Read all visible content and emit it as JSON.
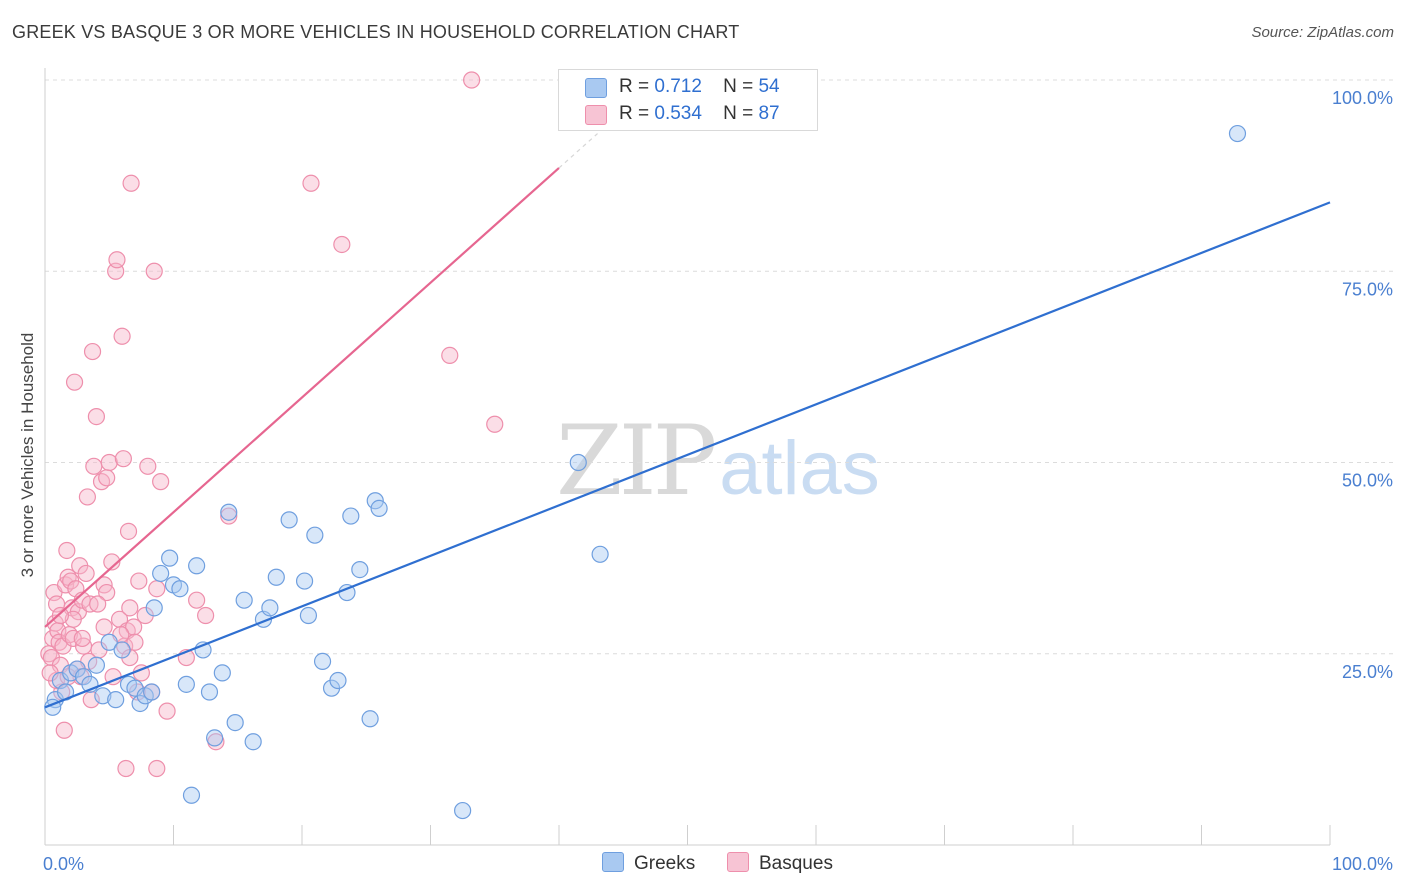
{
  "title": "GREEK VS BASQUE 3 OR MORE VEHICLES IN HOUSEHOLD CORRELATION CHART",
  "source": "Source: ZipAtlas.com",
  "watermark": {
    "zip": "ZIP",
    "atlas": "atlas"
  },
  "legend": {
    "greeks": {
      "r_label": "R =",
      "r_value": "0.712",
      "n_label": "N =",
      "n_value": "54"
    },
    "basques": {
      "r_label": "R =",
      "r_value": "0.534",
      "n_label": "N =",
      "n_value": "87"
    }
  },
  "bottom_legend": {
    "greeks": "Greeks",
    "basques": "Basques"
  },
  "colors": {
    "greeks_fill": "#a9c9f1",
    "greeks_stroke": "#6f9fdf",
    "greeks_line": "#2f6fd0",
    "basques_fill": "#f7b6ca",
    "basques_stroke": "#ee8fac",
    "basques_line": "#e66690",
    "axis_text": "#4a7fd0",
    "grid": "#dcdcdc"
  },
  "chart_data": {
    "type": "scatter",
    "title": "GREEK VS BASQUE 3 OR MORE VEHICLES IN HOUSEHOLD CORRELATION CHART",
    "xlabel": "",
    "ylabel": "3 or more Vehicles in Household",
    "xlim": [
      0,
      100
    ],
    "ylim": [
      0,
      100
    ],
    "x_tick_labels": [
      "0.0%",
      "100.0%"
    ],
    "y_ticks": [
      25,
      50,
      75,
      100
    ],
    "y_tick_labels": [
      "25.0%",
      "50.0%",
      "75.0%",
      "100.0%"
    ],
    "series": [
      {
        "name": "Greeks",
        "r": 0.712,
        "n": 54,
        "trend": {
          "x": [
            0,
            100
          ],
          "y": [
            18,
            84
          ]
        },
        "points": [
          [
            0.8,
            19.0
          ],
          [
            1.2,
            21.5
          ],
          [
            1.6,
            20.0
          ],
          [
            2.0,
            22.5
          ],
          [
            2.5,
            23.0
          ],
          [
            3.0,
            22.0
          ],
          [
            3.5,
            21.0
          ],
          [
            4.0,
            23.5
          ],
          [
            4.5,
            19.5
          ],
          [
            5.0,
            26.5
          ],
          [
            5.5,
            19.0
          ],
          [
            6.0,
            25.5
          ],
          [
            6.5,
            21.0
          ],
          [
            7.0,
            20.5
          ],
          [
            7.4,
            18.5
          ],
          [
            7.8,
            19.5
          ],
          [
            8.3,
            20.0
          ],
          [
            8.5,
            31.0
          ],
          [
            9.0,
            35.5
          ],
          [
            9.7,
            37.5
          ],
          [
            10.0,
            34.0
          ],
          [
            10.5,
            33.5
          ],
          [
            11.0,
            21.0
          ],
          [
            11.4,
            6.5
          ],
          [
            11.8,
            36.5
          ],
          [
            12.3,
            25.5
          ],
          [
            12.8,
            20.0
          ],
          [
            13.2,
            14.0
          ],
          [
            13.8,
            22.5
          ],
          [
            14.3,
            43.5
          ],
          [
            14.8,
            16.0
          ],
          [
            15.5,
            32.0
          ],
          [
            16.2,
            13.5
          ],
          [
            17.0,
            29.5
          ],
          [
            17.5,
            31.0
          ],
          [
            18.0,
            35.0
          ],
          [
            19.0,
            42.5
          ],
          [
            20.2,
            34.5
          ],
          [
            20.5,
            30.0
          ],
          [
            21.0,
            40.5
          ],
          [
            21.6,
            24.0
          ],
          [
            22.3,
            20.5
          ],
          [
            22.8,
            21.5
          ],
          [
            23.5,
            33.0
          ],
          [
            23.8,
            43.0
          ],
          [
            24.5,
            36.0
          ],
          [
            25.3,
            16.5
          ],
          [
            25.7,
            45.0
          ],
          [
            26.0,
            44.0
          ],
          [
            32.5,
            4.5
          ],
          [
            41.5,
            50.0
          ],
          [
            43.2,
            38.0
          ],
          [
            92.8,
            93.0
          ],
          [
            0.6,
            18.0
          ]
        ]
      },
      {
        "name": "Basques",
        "r": 0.534,
        "n": 87,
        "trend": {
          "x": [
            0,
            40
          ],
          "y": [
            28.5,
            88.5
          ]
        },
        "points": [
          [
            0.3,
            25.0
          ],
          [
            0.5,
            24.5
          ],
          [
            0.6,
            27.0
          ],
          [
            0.7,
            33.0
          ],
          [
            0.8,
            29.0
          ],
          [
            0.9,
            31.5
          ],
          [
            1.0,
            28.0
          ],
          [
            1.1,
            26.5
          ],
          [
            1.2,
            23.5
          ],
          [
            1.3,
            20.0
          ],
          [
            1.4,
            26.0
          ],
          [
            1.5,
            15.0
          ],
          [
            1.6,
            34.0
          ],
          [
            1.7,
            38.5
          ],
          [
            1.8,
            35.0
          ],
          [
            1.9,
            27.5
          ],
          [
            2.0,
            34.5
          ],
          [
            2.1,
            31.0
          ],
          [
            2.2,
            27.0
          ],
          [
            2.3,
            60.5
          ],
          [
            2.4,
            33.5
          ],
          [
            2.5,
            23.0
          ],
          [
            2.6,
            30.5
          ],
          [
            2.7,
            36.5
          ],
          [
            2.8,
            22.0
          ],
          [
            2.9,
            32.0
          ],
          [
            3.0,
            26.0
          ],
          [
            3.2,
            35.5
          ],
          [
            3.3,
            45.5
          ],
          [
            3.5,
            31.5
          ],
          [
            3.6,
            19.0
          ],
          [
            3.7,
            64.5
          ],
          [
            3.8,
            49.5
          ],
          [
            4.0,
            56.0
          ],
          [
            4.2,
            25.5
          ],
          [
            4.4,
            47.5
          ],
          [
            4.6,
            34.0
          ],
          [
            4.8,
            33.0
          ],
          [
            5.0,
            50.0
          ],
          [
            5.2,
            37.0
          ],
          [
            5.3,
            22.0
          ],
          [
            5.5,
            75.0
          ],
          [
            5.6,
            76.5
          ],
          [
            5.8,
            29.5
          ],
          [
            6.0,
            66.5
          ],
          [
            6.1,
            50.5
          ],
          [
            6.2,
            26.0
          ],
          [
            6.3,
            10.0
          ],
          [
            6.4,
            28.0
          ],
          [
            6.5,
            41.0
          ],
          [
            6.6,
            31.0
          ],
          [
            6.7,
            86.5
          ],
          [
            6.9,
            28.5
          ],
          [
            7.0,
            26.5
          ],
          [
            7.2,
            20.0
          ],
          [
            7.5,
            22.5
          ],
          [
            7.8,
            30.0
          ],
          [
            8.0,
            49.5
          ],
          [
            8.3,
            20.0
          ],
          [
            8.5,
            75.0
          ],
          [
            8.7,
            10.0
          ],
          [
            9.0,
            47.5
          ],
          [
            9.5,
            17.5
          ],
          [
            11.0,
            24.5
          ],
          [
            11.8,
            32.0
          ],
          [
            12.5,
            30.0
          ],
          [
            13.3,
            13.5
          ],
          [
            14.3,
            43.0
          ],
          [
            20.7,
            86.5
          ],
          [
            23.1,
            78.5
          ],
          [
            31.5,
            64.0
          ],
          [
            33.2,
            100.0
          ],
          [
            35.0,
            55.0
          ],
          [
            4.8,
            48.0
          ],
          [
            0.9,
            21.5
          ],
          [
            2.9,
            27.0
          ],
          [
            4.6,
            28.5
          ],
          [
            5.9,
            27.5
          ],
          [
            7.3,
            34.5
          ],
          [
            1.8,
            22.0
          ],
          [
            3.4,
            24.0
          ],
          [
            6.6,
            24.5
          ],
          [
            8.7,
            33.5
          ],
          [
            2.2,
            29.5
          ],
          [
            4.1,
            31.5
          ],
          [
            0.4,
            22.5
          ],
          [
            1.2,
            30.0
          ]
        ]
      }
    ]
  }
}
